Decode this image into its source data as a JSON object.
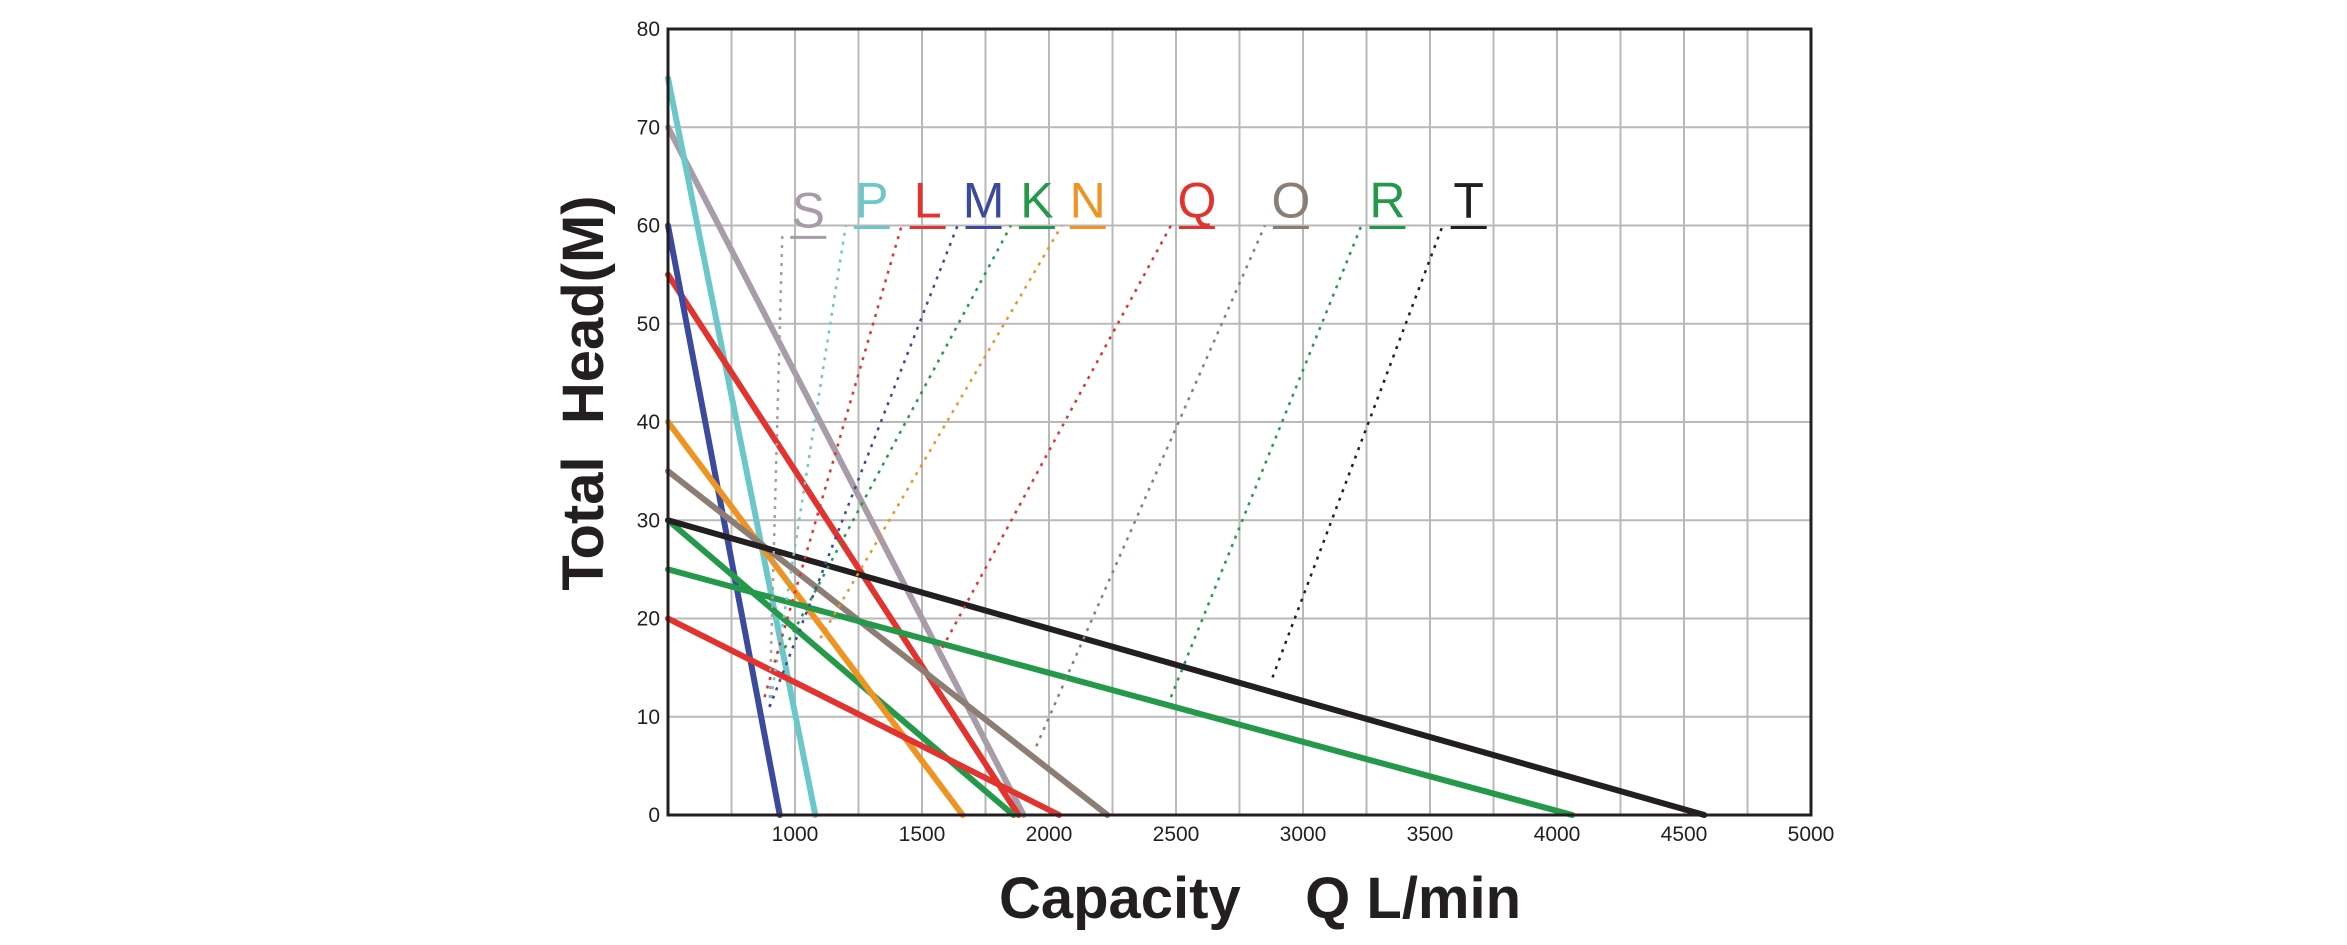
{
  "chart_data": {
    "type": "line",
    "xlabel": "Capacity    Q L/min",
    "ylabel": "Total  Head(M)",
    "xlim": [
      500,
      5000
    ],
    "ylim": [
      0,
      80
    ],
    "x_tick_labels": [
      "1000",
      "1500",
      "2000",
      "2500",
      "3000",
      "3500",
      "4000",
      "4500",
      "5000"
    ],
    "y_tick_labels": [
      "0",
      "10",
      "20",
      "30",
      "40",
      "50",
      "60",
      "70",
      "80"
    ],
    "grid": true,
    "series": [
      {
        "name": "S",
        "color": "#a79ca8",
        "x": [
          500,
          1900
        ],
        "y": [
          70,
          0
        ],
        "leader": {
          "from": [
            900,
            11
          ],
          "to": [
            950,
            59
          ]
        }
      },
      {
        "name": "P",
        "color": "#6cc7c8",
        "x": [
          500,
          1080
        ],
        "y": [
          75,
          0
        ],
        "leader": {
          "from": [
            900,
            11
          ],
          "to": [
            1200,
            60
          ]
        }
      },
      {
        "name": "L",
        "color": "#e2332e",
        "x": [
          500,
          1880
        ],
        "y": [
          55,
          0
        ],
        "leader": {
          "from": [
            880,
            12
          ],
          "to": [
            1420,
            60
          ]
        }
      },
      {
        "name": "M",
        "color": "#3b4a9c",
        "x": [
          500,
          940
        ],
        "y": [
          60,
          0
        ],
        "leader": {
          "from": [
            900,
            11
          ],
          "to": [
            1640,
            60
          ]
        }
      },
      {
        "name": "K",
        "color": "#24994a",
        "x": [
          500,
          1860
        ],
        "y": [
          30,
          0
        ],
        "leader": {
          "from": [
            960,
            17
          ],
          "to": [
            1850,
            60
          ]
        }
      },
      {
        "name": "N",
        "color": "#ef9323",
        "x": [
          500,
          1660
        ],
        "y": [
          40,
          0
        ],
        "leader": {
          "from": [
            1100,
            18
          ],
          "to": [
            2050,
            60
          ]
        }
      },
      {
        "name": "Q",
        "color": "#e2332e",
        "x": [
          500,
          2040
        ],
        "y": [
          20,
          0
        ],
        "leader": {
          "from": [
            1580,
            17
          ],
          "to": [
            2480,
            60
          ]
        }
      },
      {
        "name": "O",
        "color": "#8d7e75",
        "x": [
          500,
          2230
        ],
        "y": [
          35,
          0
        ],
        "leader": {
          "from": [
            1950,
            7
          ],
          "to": [
            2850,
            60
          ]
        }
      },
      {
        "name": "R",
        "color": "#24994a",
        "x": [
          500,
          4060
        ],
        "y": [
          25,
          0
        ],
        "leader": {
          "from": [
            2480,
            12
          ],
          "to": [
            3230,
            60
          ]
        }
      },
      {
        "name": "T",
        "color": "#231f20",
        "x": [
          500,
          4580
        ],
        "y": [
          30,
          0
        ],
        "leader": {
          "from": [
            2880,
            14
          ],
          "to": [
            3550,
            60
          ]
        }
      }
    ]
  }
}
